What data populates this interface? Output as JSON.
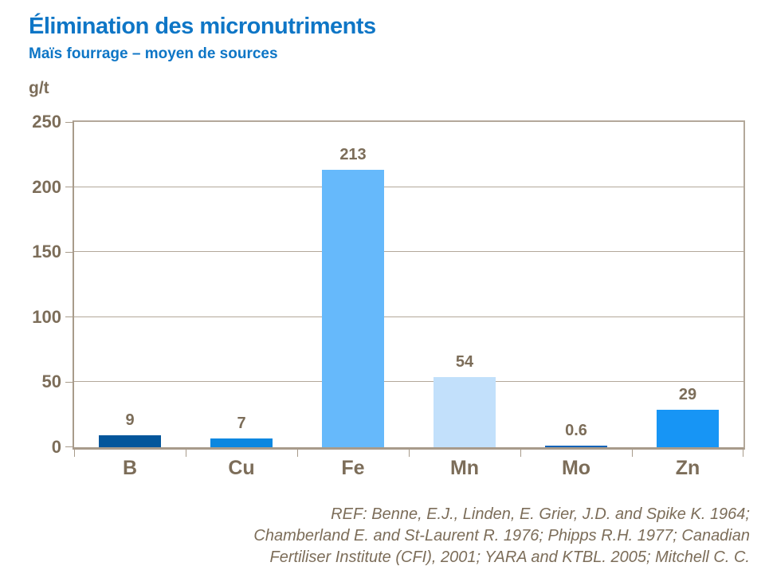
{
  "header": {
    "title": "Élimination des micronutriments",
    "subtitle": "Maïs fourrage – moyen de sources"
  },
  "chart_data": {
    "type": "bar",
    "title": "Élimination des micronutriments",
    "subtitle": "Maïs fourrage – moyen de sources",
    "ylabel": "g/t",
    "xlabel": "",
    "categories": [
      "B",
      "Cu",
      "Fe",
      "Mn",
      "Mo",
      "Zn"
    ],
    "values": [
      9,
      7,
      213,
      54,
      0.6,
      29
    ],
    "value_labels": [
      "9",
      "7",
      "213",
      "54",
      "0.6",
      "29"
    ],
    "bar_colors": [
      "#03569b",
      "#0b87e0",
      "#66b9fb",
      "#c2e0fb",
      "#1263b8",
      "#1795f5"
    ],
    "ylim": [
      0,
      250
    ],
    "yticks": [
      0,
      50,
      100,
      150,
      200,
      250
    ],
    "grid": true,
    "legend_position": "none"
  },
  "footer": {
    "reference_lines": [
      "REF: Benne, E.J., Linden, E. Grier, J.D. and Spike K. 1964;",
      "Chamberland E. and St-Laurent R. 1976; Phipps R.H. 1977; Canadian",
      "Fertiliser Institute (CFI), 2001; YARA and KTBL. 2005; Mitchell C. C."
    ]
  },
  "colors": {
    "accent_blue": "#0e76c6",
    "text_brown": "#7c6d59",
    "grid_line": "#b3a89a",
    "axis_line": "#a89b8b",
    "background": "#ffffff"
  }
}
